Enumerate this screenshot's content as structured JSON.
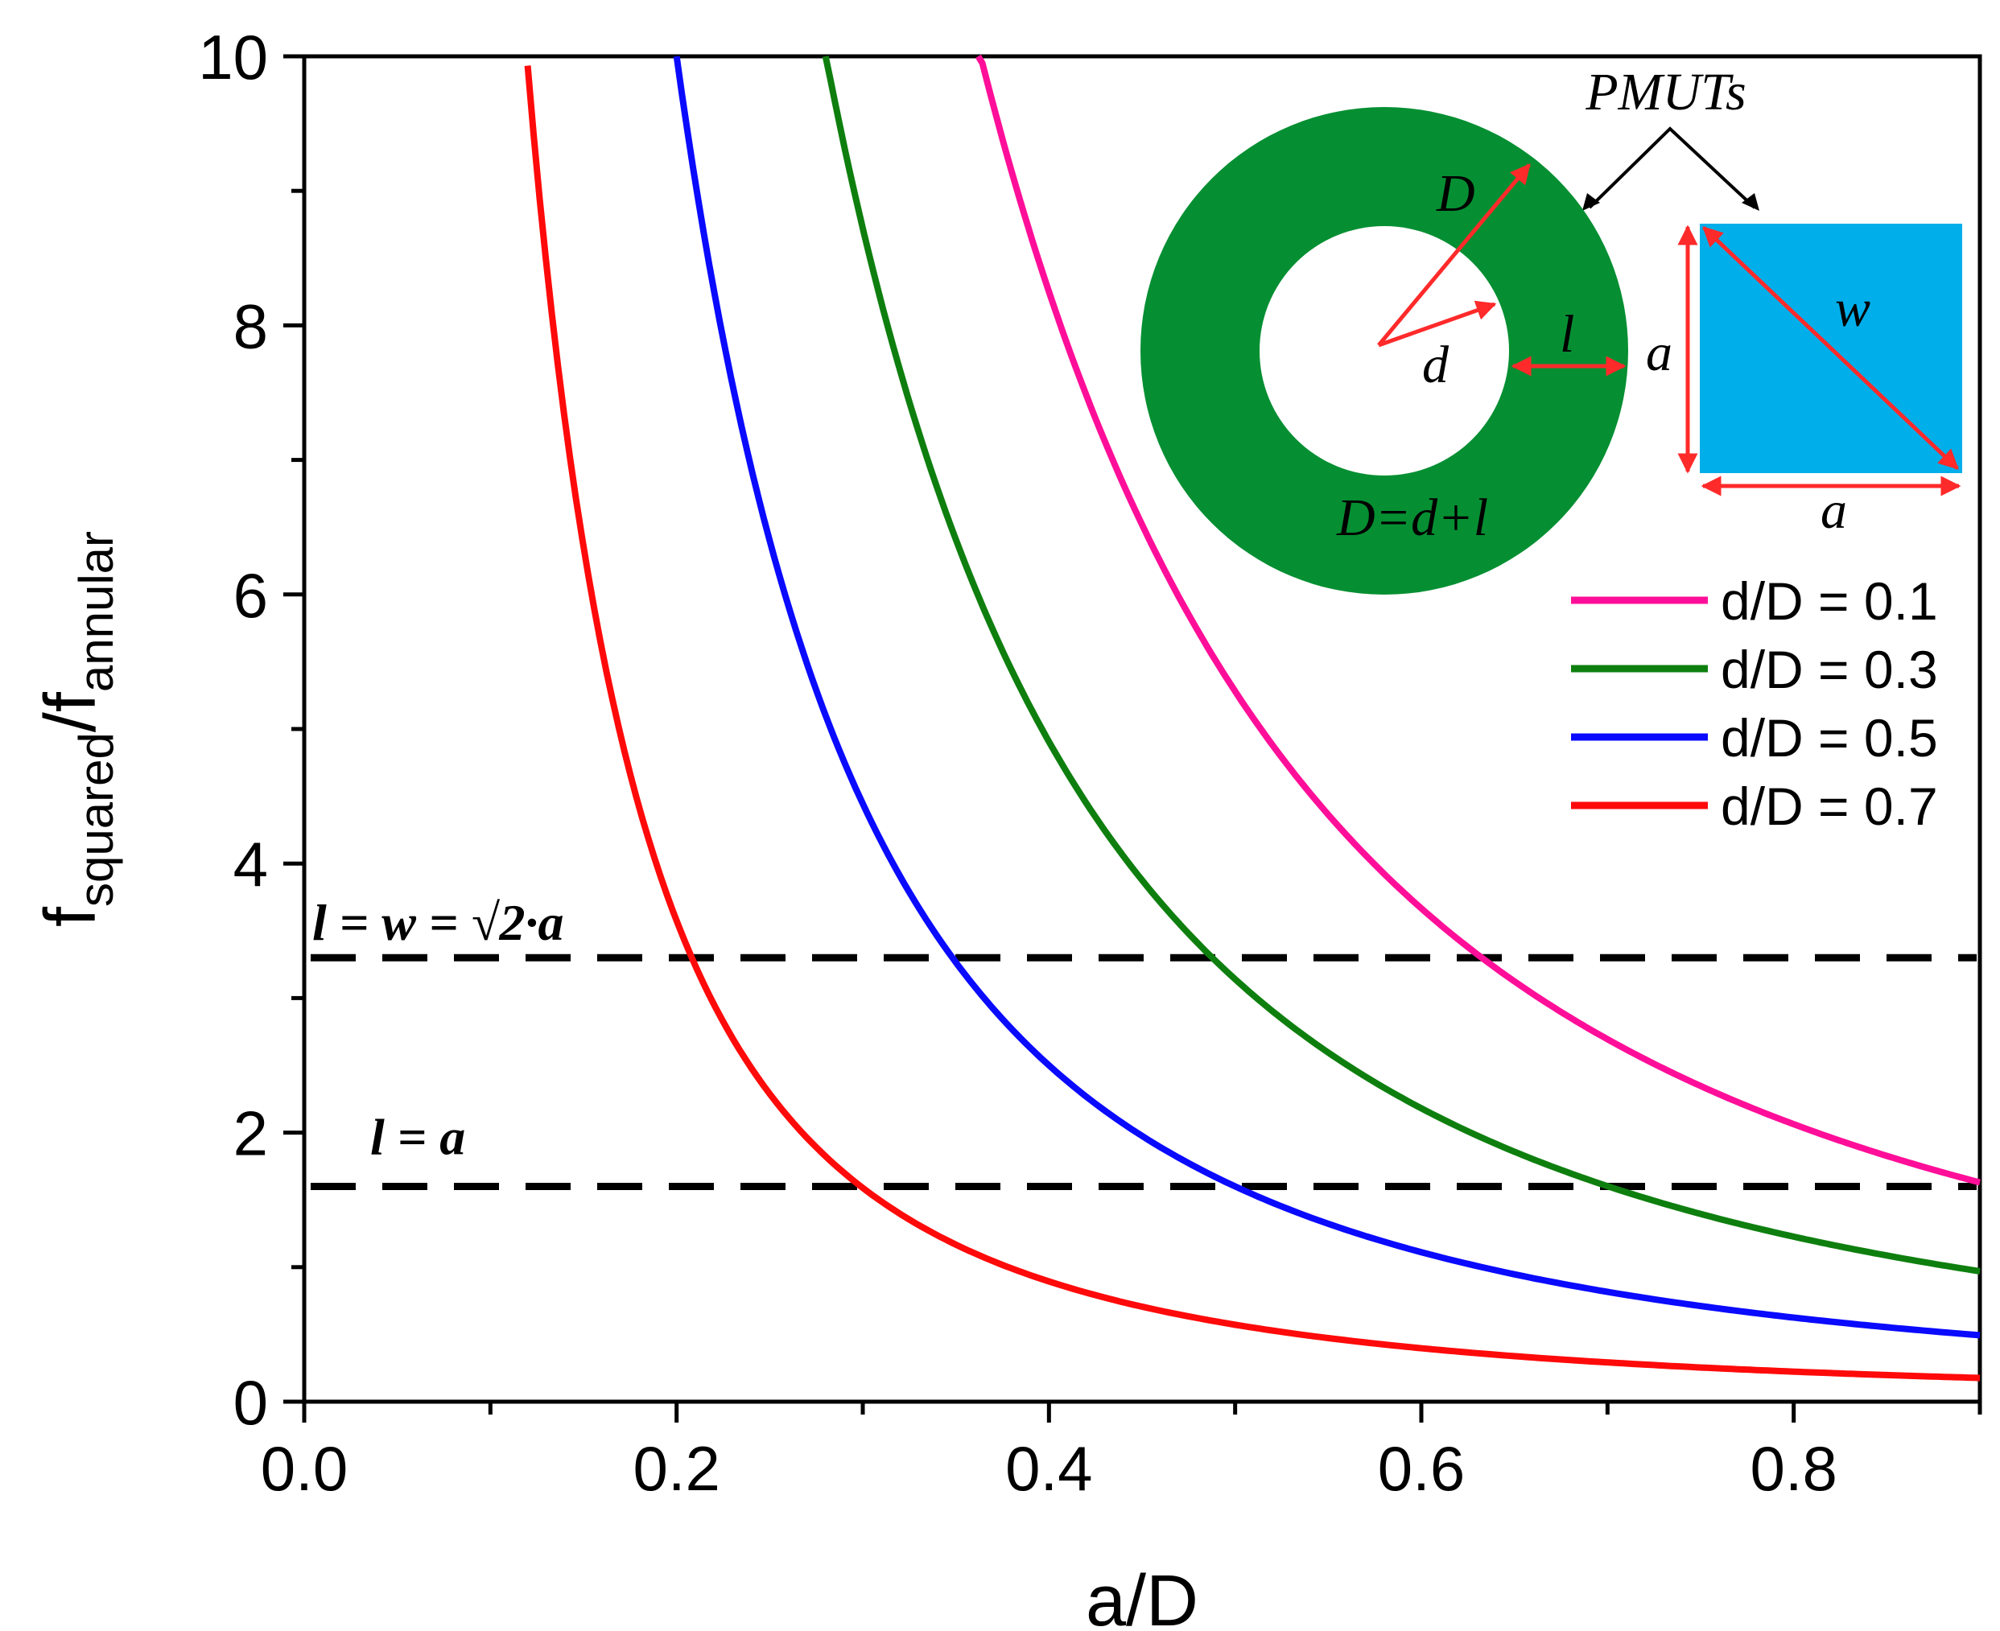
{
  "chart_data": {
    "type": "line",
    "xlabel": "a/D",
    "ylabel_main": "f",
    "ylabel_num_sub": "squared",
    "ylabel_slash": "/f",
    "ylabel_den_sub": "annular",
    "xlim": [
      0.0,
      0.9
    ],
    "ylim": [
      0,
      10
    ],
    "xticks": [
      0.0,
      0.2,
      0.4,
      0.6,
      0.8
    ],
    "xtick_labels": [
      "0.0",
      "0.2",
      "0.4",
      "0.6",
      "0.8"
    ],
    "yticks": [
      0,
      2,
      4,
      6,
      8,
      10
    ],
    "ytick_labels": [
      "0",
      "2",
      "4",
      "6",
      "8",
      "10"
    ],
    "series": [
      {
        "name": "d/D = 0.1",
        "color": "#ff0f99",
        "k": 1.32,
        "x_range": [
          0.362,
          0.9
        ]
      },
      {
        "name": "d/D = 0.3",
        "color": "#0e7f0e",
        "k": 0.785,
        "x_range": [
          0.28,
          0.9
        ]
      },
      {
        "name": "d/D = 0.5",
        "color": "#0a0aff",
        "k": 0.4,
        "x_range": [
          0.2,
          0.9
        ]
      },
      {
        "name": "d/D = 0.7",
        "color": "#ff0a0a",
        "k": 0.143,
        "x_range": [
          0.12,
          0.9
        ]
      }
    ],
    "reference_lines": [
      {
        "label_l": "l",
        "label_rest": " = w = √2·a",
        "y": 3.3
      },
      {
        "label_l": "l",
        "label_rest": " = a",
        "y": 1.6
      }
    ],
    "legend_position": "right"
  },
  "inset": {
    "title": "PMUTs",
    "annular_labels": {
      "D": "D",
      "d": "d",
      "l": "l",
      "relation": "D=d+l"
    },
    "square_labels": {
      "a_left": "a",
      "a_bottom": "a",
      "w": "w"
    },
    "colors": {
      "annular": "#058f32",
      "square": "#00aeea",
      "arrow": "#ff2a2a"
    }
  }
}
